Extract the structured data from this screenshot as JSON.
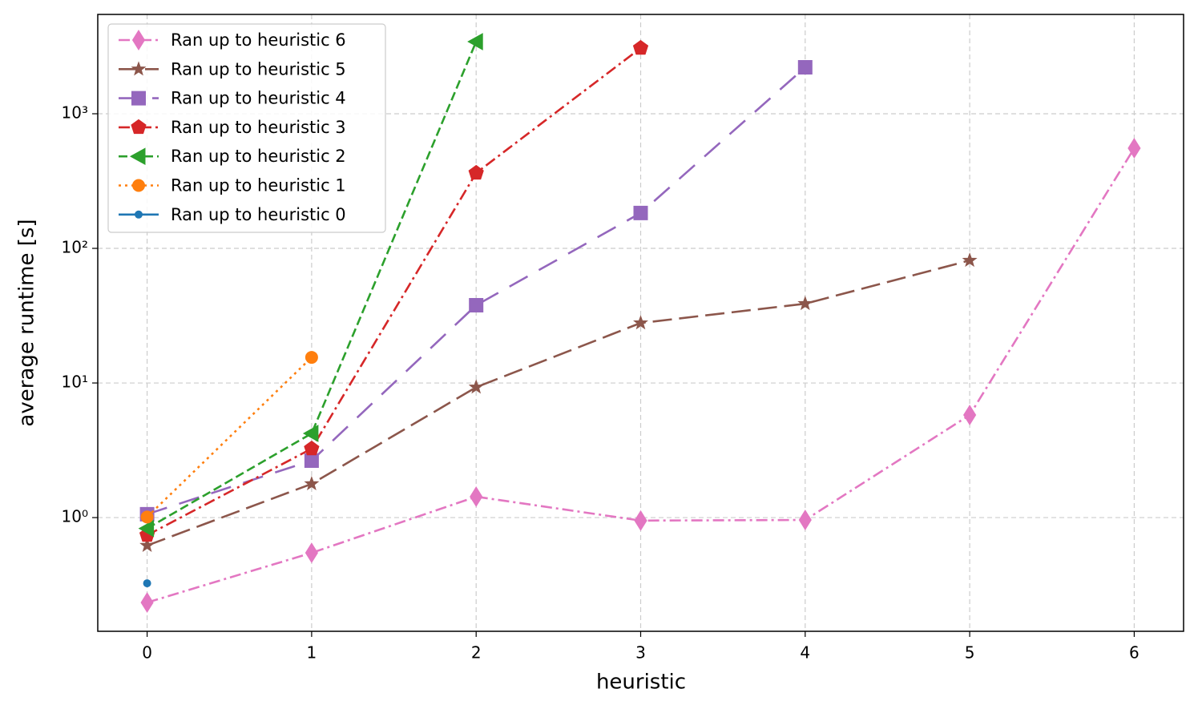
{
  "chart_data": {
    "type": "line",
    "x_label": "heuristic",
    "y_label": "average runtime [s]",
    "log_y": true,
    "grid": true,
    "legend_position": "upper left",
    "xlim": [
      -0.3,
      6.3
    ],
    "xticks": [
      0,
      1,
      2,
      3,
      4,
      5,
      6
    ],
    "ylim": [
      0.143,
      5470
    ],
    "yticks": [
      {
        "value": 1,
        "label": "10⁰"
      },
      {
        "value": 10,
        "label": "10¹"
      },
      {
        "value": 100,
        "label": "10²"
      },
      {
        "value": 1000,
        "label": "10³"
      }
    ],
    "series": [
      {
        "name": "Ran up to heuristic 6",
        "color": "#e377c2",
        "linestyle": "dashdot",
        "marker": "diamond",
        "x": [
          0,
          1,
          2,
          3,
          4,
          5,
          6
        ],
        "values": [
          0.234,
          0.547,
          1.43,
          0.95,
          0.96,
          5.78,
          555
        ]
      },
      {
        "name": "Ran up to heuristic 5",
        "color": "#8c564b",
        "linestyle": "longdash",
        "marker": "star",
        "x": [
          0,
          1,
          2,
          3,
          4,
          5
        ],
        "values": [
          0.62,
          1.78,
          9.3,
          27.9,
          38.8,
          81.4
        ]
      },
      {
        "name": "Ran up to heuristic 4",
        "color": "#9467bd",
        "linestyle": "loosedash",
        "marker": "square",
        "x": [
          0,
          1,
          2,
          3,
          4
        ],
        "values": [
          1.06,
          2.65,
          37.8,
          183,
          2213
        ]
      },
      {
        "name": "Ran up to heuristic 3",
        "color": "#d62728",
        "linestyle": "dashdot",
        "marker": "pentagon",
        "x": [
          0,
          1,
          2,
          3
        ],
        "values": [
          0.74,
          3.25,
          363,
          3076
        ]
      },
      {
        "name": "Ran up to heuristic 2",
        "color": "#2ca02c",
        "linestyle": "dashed",
        "marker": "triangle-left",
        "x": [
          0,
          1,
          2
        ],
        "values": [
          0.83,
          4.22,
          3434
        ]
      },
      {
        "name": "Ran up to heuristic 1",
        "color": "#ff7f0e",
        "linestyle": "dotted",
        "marker": "circle",
        "x": [
          0,
          1
        ],
        "values": [
          1.01,
          15.5
        ]
      },
      {
        "name": "Ran up to heuristic 0",
        "color": "#1f77b4",
        "linestyle": "solid",
        "marker": "point",
        "x": [
          0
        ],
        "values": [
          0.325
        ]
      }
    ]
  }
}
